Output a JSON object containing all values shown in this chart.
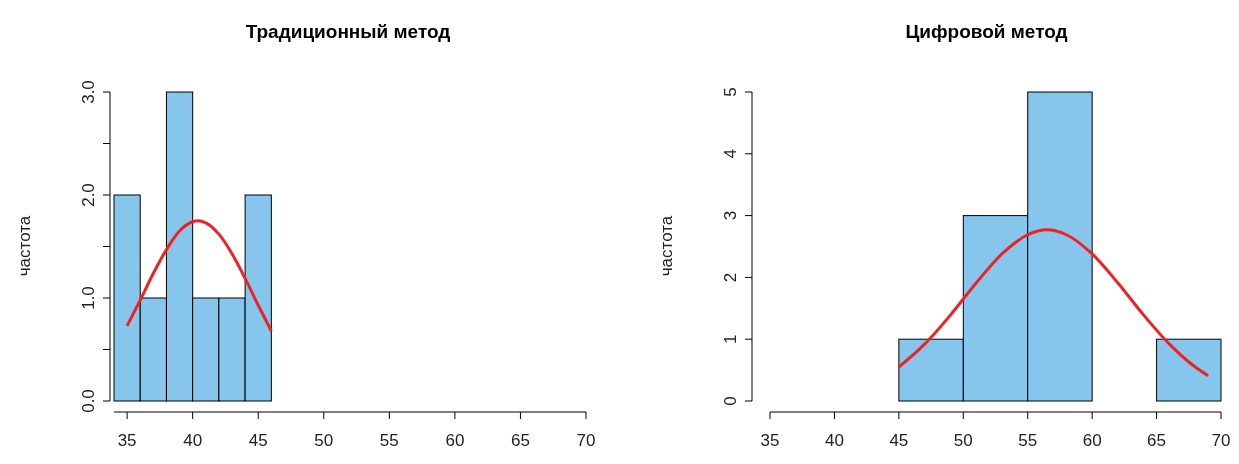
{
  "chart_data": [
    {
      "type": "histogram",
      "title": "Традиционный метод",
      "ylabel": "частота",
      "xlim": [
        34,
        70
      ],
      "xticks": [
        35,
        40,
        45,
        50,
        55,
        60,
        65,
        70
      ],
      "ylim": [
        0,
        3
      ],
      "yticks": [
        {
          "value": 0,
          "label": "0.0"
        },
        {
          "value": 0.5,
          "label": null
        },
        {
          "value": 1,
          "label": "1.0"
        },
        {
          "value": 1.5,
          "label": null
        },
        {
          "value": 2,
          "label": "2.0"
        },
        {
          "value": 2.5,
          "label": null
        },
        {
          "value": 3,
          "label": "3.0"
        }
      ],
      "grid": false,
      "series": [
        {
          "type": "histogram",
          "color": "#87c6ec",
          "bins": [
            34,
            36,
            38,
            40,
            42,
            44,
            46
          ],
          "values": [
            2,
            1,
            3,
            1,
            1,
            2
          ]
        },
        {
          "type": "line",
          "color": "#ee2222",
          "x": [
            35,
            36,
            37,
            38,
            39,
            40,
            40.4,
            41,
            42,
            43,
            44,
            45,
            46
          ],
          "values": [
            0.73,
            0.98,
            1.24,
            1.47,
            1.65,
            1.74,
            1.75,
            1.73,
            1.62,
            1.43,
            1.19,
            0.93,
            0.68
          ]
        }
      ]
    },
    {
      "type": "histogram",
      "title": "Цифровой метод",
      "ylabel": "частота",
      "xlim": [
        35,
        70
      ],
      "xticks": [
        35,
        40,
        45,
        50,
        55,
        60,
        65,
        70
      ],
      "ylim": [
        0,
        5
      ],
      "yticks": [
        0,
        1,
        2,
        3,
        4,
        5
      ],
      "grid": false,
      "series": [
        {
          "type": "histogram",
          "color": "#87c6ec",
          "bins": [
            45,
            50,
            55,
            60,
            65,
            70
          ],
          "values": [
            1,
            3,
            5,
            0,
            1
          ]
        },
        {
          "type": "line",
          "color": "#ee2222",
          "x": [
            45,
            47,
            49,
            51,
            53,
            55,
            56.5,
            58,
            60,
            62,
            64,
            66,
            68,
            69
          ],
          "values": [
            0.55,
            0.92,
            1.39,
            1.91,
            2.38,
            2.69,
            2.77,
            2.69,
            2.38,
            1.91,
            1.39,
            0.92,
            0.55,
            0.41
          ]
        }
      ]
    }
  ]
}
